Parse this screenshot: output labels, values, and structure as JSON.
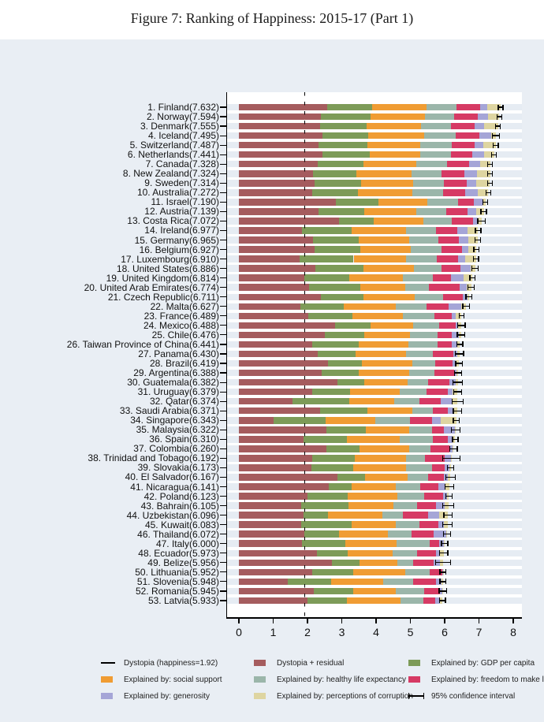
{
  "title": "Figure 7: Ranking of Happiness: 2015-17 (Part 1)",
  "colors": {
    "figure_bg": "#e9eef4",
    "plot_bg": "#ffffff",
    "row_band": "#e6ecf3",
    "axis": "#000000",
    "segment_colors": {
      "dystopia_residual": "#a55c5e",
      "gdp_per_capita": "#7d9b58",
      "social_support": "#f09c33",
      "healthy_life_expectancy": "#9bb6aa",
      "freedom": "#d63a64",
      "generosity": "#a5a5d7",
      "corruption": "#ded5a1"
    }
  },
  "legend": [
    {
      "swatch": "line",
      "color": "#000000",
      "label": "Dystopia (happiness=1.92)"
    },
    {
      "swatch": "box",
      "color": "#a55c5e",
      "label": "Dystopia + residual"
    },
    {
      "swatch": "box",
      "color": "#7d9b58",
      "label": "Explained by: GDP per capita"
    },
    {
      "swatch": "box",
      "color": "#f09c33",
      "label": "Explained by: social support"
    },
    {
      "swatch": "box",
      "color": "#9bb6aa",
      "label": "Explained by: healthy life expectancy"
    },
    {
      "swatch": "box",
      "color": "#d63a64",
      "label": "Explained by: freedom to make life choices"
    },
    {
      "swatch": "box",
      "color": "#a5a5d7",
      "label": "Explained by: generosity"
    },
    {
      "swatch": "box",
      "color": "#ded5a1",
      "label": "Explained by: perceptions of corruption"
    },
    {
      "swatch": "errorbar",
      "color": "#000000",
      "label": "95% confidence interval"
    }
  ],
  "chart_data": {
    "type": "bar",
    "orientation": "horizontal",
    "title": "Figure 7: Ranking of Happiness: 2015-17 (Part 1)",
    "xlabel": "",
    "ylabel": "",
    "xlim": [
      0,
      8
    ],
    "x_ticks": [
      "0",
      "1",
      "2",
      "3",
      "4",
      "5",
      "6",
      "7",
      "8"
    ],
    "dystopia_line_value": 1.92,
    "grid": "row-bands",
    "legend_position": "bottom",
    "stack_order": [
      "dystopia_residual",
      "gdp_per_capita",
      "social_support",
      "healthy_life_expectancy",
      "freedom",
      "generosity",
      "corruption"
    ],
    "rows": [
      {
        "label": "1. Finland(7.632)",
        "score": 7.632,
        "values": [
          2.585,
          1.305,
          1.592,
          0.874,
          0.681,
          0.202,
          0.393
        ],
        "ci": 0.07
      },
      {
        "label": "2. Norway(7.594)",
        "score": 7.594,
        "values": [
          2.383,
          1.456,
          1.582,
          0.861,
          0.686,
          0.286,
          0.34
        ],
        "ci": 0.07
      },
      {
        "label": "3. Denmark(7.555)",
        "score": 7.555,
        "values": [
          2.371,
          1.351,
          1.59,
          0.868,
          0.683,
          0.284,
          0.408
        ],
        "ci": 0.07
      },
      {
        "label": "4. Iceland(7.495)",
        "score": 7.495,
        "values": [
          2.426,
          1.343,
          1.644,
          0.914,
          0.677,
          0.353,
          0.138
        ],
        "ci": 0.11
      },
      {
        "label": "5. Switzerland(7.487)",
        "score": 7.487,
        "values": [
          2.318,
          1.42,
          1.549,
          0.927,
          0.66,
          0.256,
          0.357
        ],
        "ci": 0.08
      },
      {
        "label": "6. Netherlands(7.441)",
        "score": 7.441,
        "values": [
          2.448,
          1.361,
          1.488,
          0.878,
          0.638,
          0.333,
          0.295
        ],
        "ci": 0.07
      },
      {
        "label": "7. Canada(7.328)",
        "score": 7.328,
        "values": [
          2.305,
          1.33,
          1.532,
          0.896,
          0.653,
          0.321,
          0.291
        ],
        "ci": 0.07
      },
      {
        "label": "8. New Zealand(7.324)",
        "score": 7.324,
        "values": [
          2.156,
          1.268,
          1.601,
          0.876,
          0.669,
          0.365,
          0.389
        ],
        "ci": 0.07
      },
      {
        "label": "9. Sweden(7.314)",
        "score": 7.314,
        "values": [
          2.218,
          1.355,
          1.501,
          0.913,
          0.659,
          0.285,
          0.383
        ],
        "ci": 0.07
      },
      {
        "label": "10. Australia(7.272)",
        "score": 7.272,
        "values": [
          2.139,
          1.34,
          1.573,
          0.91,
          0.647,
          0.361,
          0.302
        ],
        "ci": 0.07
      },
      {
        "label": "11. Israel(7.190)",
        "score": 7.19,
        "values": [
          2.817,
          1.244,
          1.433,
          0.888,
          0.464,
          0.262,
          0.082
        ],
        "ci": 0.07
      },
      {
        "label": "12. Austria(7.139)",
        "score": 7.139,
        "values": [
          2.32,
          1.341,
          1.504,
          0.891,
          0.617,
          0.242,
          0.224
        ],
        "ci": 0.08
      },
      {
        "label": "13. Costa Rica(7.072)",
        "score": 7.072,
        "values": [
          2.91,
          1.01,
          1.459,
          0.817,
          0.632,
          0.143,
          0.101
        ],
        "ci": 0.11
      },
      {
        "label": "14. Ireland(6.977)",
        "score": 6.977,
        "values": [
          1.843,
          1.448,
          1.583,
          0.876,
          0.614,
          0.307,
          0.306
        ],
        "ci": 0.08
      },
      {
        "label": "15. Germany(6.965)",
        "score": 6.965,
        "values": [
          2.151,
          1.34,
          1.474,
          0.861,
          0.586,
          0.273,
          0.28
        ],
        "ci": 0.08
      },
      {
        "label": "16. Belgium(6.927)",
        "score": 6.927,
        "values": [
          2.215,
          1.324,
          1.483,
          0.894,
          0.583,
          0.188,
          0.24
        ],
        "ci": 0.08
      },
      {
        "label": "17. Luxembourg(6.910)",
        "score": 6.91,
        "values": [
          1.769,
          1.576,
          1.52,
          0.896,
          0.632,
          0.196,
          0.321
        ],
        "ci": 0.08
      },
      {
        "label": "18. United States(6.886)",
        "score": 6.886,
        "values": [
          2.227,
          1.398,
          1.471,
          0.819,
          0.547,
          0.291,
          0.133
        ],
        "ci": 0.09
      },
      {
        "label": "19. United Kingdom(6.814)",
        "score": 6.814,
        "values": [
          1.912,
          1.301,
          1.559,
          0.883,
          0.533,
          0.354,
          0.272
        ],
        "ci": 0.08
      },
      {
        "label": "20. United Arab Emirates(6.774)",
        "score": 6.774,
        "values": [
          2.05,
          1.5,
          1.31,
          0.68,
          0.9,
          0.21,
          0.124
        ],
        "ci": 0.09
      },
      {
        "label": "21. Czech Republic(6.711)",
        "score": 6.711,
        "values": [
          2.384,
          1.256,
          1.478,
          0.832,
          0.583,
          0.143,
          0.035
        ],
        "ci": 0.09
      },
      {
        "label": "22. Malta(6.627)",
        "score": 6.627,
        "values": [
          1.785,
          1.27,
          1.525,
          0.884,
          0.645,
          0.376,
          0.142
        ],
        "ci": 0.1
      },
      {
        "label": "23. France(6.489)",
        "score": 6.489,
        "values": [
          2.028,
          1.293,
          1.466,
          0.908,
          0.52,
          0.098,
          0.176
        ],
        "ci": 0.07
      },
      {
        "label": "24. Mexico(6.488)",
        "score": 6.488,
        "values": [
          2.794,
          1.038,
          1.252,
          0.761,
          0.479,
          0.069,
          0.095
        ],
        "ci": 0.11
      },
      {
        "label": "25. Chile(6.476)",
        "score": 6.476,
        "values": [
          2.517,
          1.131,
          1.331,
          0.808,
          0.431,
          0.197,
          0.061
        ],
        "ci": 0.11
      },
      {
        "label": "26. Taiwan Province of China(6.441)",
        "score": 6.441,
        "values": [
          2.136,
          1.365,
          1.436,
          0.857,
          0.418,
          0.151,
          0.078
        ],
        "ci": 0.09
      },
      {
        "label": "27. Panama(6.430)",
        "score": 6.43,
        "values": [
          2.301,
          1.112,
          1.463,
          0.779,
          0.596,
          0.125,
          0.054
        ],
        "ci": 0.12
      },
      {
        "label": "28. Brazil(6.419)",
        "score": 6.419,
        "values": [
          2.593,
          0.986,
          1.474,
          0.675,
          0.493,
          0.11,
          0.088
        ],
        "ci": 0.1
      },
      {
        "label": "29. Argentina(6.388)",
        "score": 6.388,
        "values": [
          2.417,
          1.073,
          1.468,
          0.744,
          0.57,
          0.062,
          0.054
        ],
        "ci": 0.1
      },
      {
        "label": "30. Guatemala(6.382)",
        "score": 6.382,
        "values": [
          2.87,
          0.781,
          1.269,
          0.608,
          0.604,
          0.179,
          0.071
        ],
        "ci": 0.14
      },
      {
        "label": "31. Uruguay(6.379)",
        "score": 6.379,
        "values": [
          2.146,
          1.093,
          1.459,
          0.771,
          0.625,
          0.13,
          0.155
        ],
        "ci": 0.11
      },
      {
        "label": "32. Qatar(6.374)",
        "score": 6.374,
        "values": [
          1.573,
          1.649,
          1.303,
          0.748,
          0.604,
          0.33,
          0.167
        ],
        "ci": 0.16
      },
      {
        "label": "33. Saudi Arabia(6.371)",
        "score": 6.371,
        "values": [
          2.362,
          1.379,
          1.308,
          0.605,
          0.449,
          0.148,
          0.12
        ],
        "ci": 0.12
      },
      {
        "label": "34. Singapore(6.343)",
        "score": 6.343,
        "values": [
          1.006,
          1.529,
          1.451,
          1.008,
          0.631,
          0.261,
          0.457
        ],
        "ci": 0.09
      },
      {
        "label": "35. Malaysia(6.322)",
        "score": 6.322,
        "values": [
          2.544,
          1.161,
          1.258,
          0.669,
          0.356,
          0.31,
          0.024
        ],
        "ci": 0.12
      },
      {
        "label": "36. Spain(6.310)",
        "score": 6.31,
        "values": [
          1.891,
          1.251,
          1.538,
          0.965,
          0.449,
          0.142,
          0.074
        ],
        "ci": 0.08
      },
      {
        "label": "37. Colombia(6.260)",
        "score": 6.26,
        "values": [
          2.562,
          0.96,
          1.439,
          0.635,
          0.531,
          0.099,
          0.034
        ],
        "ci": 0.11
      },
      {
        "label": "38. Trinidad and Tobago(6.192)",
        "score": 6.192,
        "values": [
          2.148,
          1.223,
          1.492,
          0.564,
          0.575,
          0.171,
          0.019
        ],
        "ci": 0.25
      },
      {
        "label": "39. Slovakia(6.173)",
        "score": 6.173,
        "values": [
          2.119,
          1.21,
          1.537,
          0.776,
          0.354,
          0.153,
          0.024
        ],
        "ci": 0.09
      },
      {
        "label": "40. El Salvador(6.167)",
        "score": 6.167,
        "values": [
          2.879,
          0.794,
          1.242,
          0.596,
          0.477,
          0.115,
          0.064
        ],
        "ci": 0.14
      },
      {
        "label": "41. Nicaragua(6.141)",
        "score": 6.141,
        "values": [
          2.61,
          0.668,
          1.3,
          0.7,
          0.527,
          0.208,
          0.128
        ],
        "ci": 0.13
      },
      {
        "label": "42. Poland(6.123)",
        "score": 6.123,
        "values": [
          2.0,
          1.176,
          1.448,
          0.781,
          0.546,
          0.108,
          0.064
        ],
        "ci": 0.09
      },
      {
        "label": "43. Bahrain(6.105)",
        "score": 6.105,
        "values": [
          1.827,
          1.366,
          1.323,
          0.688,
          0.536,
          0.255,
          0.11
        ],
        "ci": 0.16
      },
      {
        "label": "44. Uzbekistan(6.096)",
        "score": 6.096,
        "values": [
          1.877,
          0.719,
          1.584,
          0.605,
          0.724,
          0.328,
          0.259
        ],
        "ci": 0.12
      },
      {
        "label": "45. Kuwait(6.083)",
        "score": 6.083,
        "values": [
          1.806,
          1.474,
          1.301,
          0.675,
          0.554,
          0.167,
          0.106
        ],
        "ci": 0.14
      },
      {
        "label": "46. Thailand(6.072)",
        "score": 6.072,
        "values": [
          1.902,
          1.016,
          1.417,
          0.707,
          0.637,
          0.364,
          0.029
        ],
        "ci": 0.1
      },
      {
        "label": "47. Italy(6.000)",
        "score": 6.0,
        "values": [
          1.843,
          1.264,
          1.501,
          0.946,
          0.281,
          0.137,
          0.028
        ],
        "ci": 0.09
      },
      {
        "label": "48. Ecuador(5.973)",
        "score": 5.973,
        "values": [
          2.266,
          0.896,
          1.314,
          0.713,
          0.557,
          0.124,
          0.103
        ],
        "ci": 0.12
      },
      {
        "label": "49. Belize(5.956)",
        "score": 5.956,
        "values": [
          2.709,
          0.807,
          1.101,
          0.474,
          0.593,
          0.183,
          0.089
        ],
        "ci": 0.22
      },
      {
        "label": "50. Lithuania(5.952)",
        "score": 5.952,
        "values": [
          2.13,
          1.197,
          1.527,
          0.716,
          0.35,
          0.026,
          0.006
        ],
        "ci": 0.09
      },
      {
        "label": "51. Slovenia(5.948)",
        "score": 5.948,
        "values": [
          1.433,
          1.258,
          1.523,
          0.869,
          0.659,
          0.172,
          0.034
        ],
        "ci": 0.09
      },
      {
        "label": "52. Romania(5.945)",
        "score": 5.945,
        "values": [
          2.177,
          1.162,
          1.232,
          0.825,
          0.462,
          0.083,
          0.004
        ],
        "ci": 0.11
      },
      {
        "label": "53. Latvia(5.933)",
        "score": 5.933,
        "values": [
          2.004,
          1.148,
          1.554,
          0.671,
          0.339,
          0.153,
          0.064
        ],
        "ci": 0.09
      }
    ]
  }
}
